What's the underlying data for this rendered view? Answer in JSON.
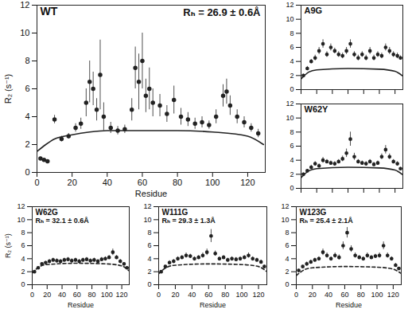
{
  "chart_data": [
    {
      "type": "scatter",
      "title": "WT",
      "subtitle": "Rₕ = 26.9 ± 0.6Å",
      "xlabel": "Residue",
      "ylabel": "R₂ (s⁻¹)",
      "xlim": [
        0,
        130
      ],
      "xticks": [
        0,
        20,
        40,
        60,
        80,
        100,
        120
      ],
      "ylim": [
        0,
        12
      ],
      "yticks": [
        0,
        2,
        4,
        6,
        8,
        10,
        12
      ],
      "color": "#222222",
      "series": [
        {
          "type": "scatter",
          "marker": "circle",
          "x": [
            2,
            4,
            6,
            10,
            14,
            18,
            22,
            25,
            28,
            30,
            32,
            34,
            36,
            38,
            42,
            46,
            50,
            54,
            56,
            58,
            60,
            62,
            64,
            66,
            70,
            74,
            78,
            82,
            86,
            90,
            94,
            98,
            102,
            106,
            108,
            110,
            114,
            118,
            122,
            126
          ],
          "values": [
            1.0,
            0.9,
            0.8,
            3.8,
            2.4,
            2.6,
            3.2,
            3.5,
            5.0,
            6.5,
            6.0,
            4.5,
            7.0,
            4.0,
            3.2,
            3.0,
            3.1,
            4.5,
            7.5,
            6.5,
            8.0,
            5.5,
            6.0,
            5.0,
            4.8,
            4.2,
            5.2,
            4.0,
            3.8,
            3.5,
            3.6,
            3.4,
            4.0,
            5.5,
            5.8,
            4.8,
            4.0,
            3.6,
            3.2,
            2.8
          ],
          "errors": [
            0.1,
            0.1,
            0.1,
            0.3,
            0.2,
            0.2,
            0.3,
            0.4,
            1.0,
            1.5,
            1.2,
            0.8,
            2.5,
            1.0,
            0.4,
            0.3,
            0.3,
            0.8,
            1.5,
            2.0,
            2.0,
            1.2,
            1.5,
            1.0,
            0.8,
            0.6,
            1.0,
            0.6,
            0.5,
            0.4,
            0.4,
            0.3,
            0.5,
            0.8,
            0.9,
            0.7,
            0.5,
            0.4,
            0.3,
            0.3
          ]
        },
        {
          "type": "line",
          "line_style": "solid",
          "x": [
            0,
            5,
            10,
            20,
            30,
            40,
            60,
            80,
            100,
            120,
            129
          ],
          "values": [
            1.5,
            2.0,
            2.4,
            2.7,
            2.9,
            3.0,
            3.0,
            3.0,
            2.9,
            2.6,
            2.0
          ]
        }
      ]
    },
    {
      "type": "scatter",
      "title": "A9G",
      "tick_labels": "y",
      "xlim": [
        0,
        130
      ],
      "xticks": [
        0,
        20,
        40,
        60,
        80,
        100,
        120
      ],
      "ylim": [
        0,
        12
      ],
      "yticks": [
        0,
        2,
        4,
        6,
        8,
        10,
        12
      ],
      "color": "#222222",
      "series": [
        {
          "type": "scatter",
          "marker": "circle",
          "x": [
            3,
            8,
            13,
            18,
            23,
            28,
            33,
            38,
            43,
            48,
            53,
            58,
            63,
            68,
            73,
            78,
            83,
            88,
            93,
            98,
            103,
            108,
            113,
            118,
            123,
            127
          ],
          "values": [
            2.0,
            3.0,
            4.0,
            4.5,
            5.5,
            6.5,
            5.0,
            6.0,
            5.5,
            5.0,
            4.8,
            5.5,
            6.5,
            5.0,
            4.5,
            5.0,
            4.5,
            5.5,
            4.5,
            5.0,
            4.8,
            6.0,
            5.5,
            5.0,
            4.8,
            4.5
          ],
          "errors": [
            0.2,
            0.3,
            0.3,
            0.4,
            0.5,
            0.6,
            0.4,
            0.5,
            0.4,
            0.4,
            0.4,
            0.5,
            0.6,
            0.4,
            0.4,
            0.4,
            0.4,
            0.5,
            0.4,
            0.4,
            0.4,
            0.5,
            0.5,
            0.4,
            0.4,
            0.3
          ]
        },
        {
          "type": "line",
          "line_style": "solid",
          "x": [
            0,
            10,
            20,
            60,
            100,
            120,
            129
          ],
          "values": [
            1.5,
            2.5,
            2.8,
            3.0,
            2.9,
            2.6,
            2.0
          ]
        }
      ]
    },
    {
      "type": "scatter",
      "title": "W62Y",
      "tick_labels": "y",
      "xlim": [
        0,
        130
      ],
      "xticks": [
        0,
        20,
        40,
        60,
        80,
        100,
        120
      ],
      "ylim": [
        0,
        12
      ],
      "yticks": [
        0,
        2,
        4,
        6,
        8,
        10,
        12
      ],
      "color": "#222222",
      "series": [
        {
          "type": "scatter",
          "marker": "circle",
          "x": [
            3,
            8,
            13,
            18,
            23,
            28,
            33,
            38,
            43,
            48,
            53,
            58,
            63,
            68,
            73,
            78,
            83,
            88,
            93,
            98,
            103,
            108,
            113,
            118,
            123,
            127
          ],
          "values": [
            2.0,
            2.5,
            3.0,
            3.5,
            3.2,
            4.0,
            3.8,
            3.6,
            3.5,
            3.8,
            4.2,
            5.0,
            7.0,
            4.5,
            3.8,
            3.6,
            3.5,
            3.8,
            3.4,
            3.6,
            4.5,
            5.5,
            4.5,
            3.8,
            3.5,
            2.8
          ],
          "errors": [
            0.2,
            0.2,
            0.3,
            0.3,
            0.3,
            0.4,
            0.3,
            0.3,
            0.3,
            0.3,
            0.4,
            0.6,
            1.0,
            0.5,
            0.3,
            0.3,
            0.3,
            0.3,
            0.3,
            0.3,
            0.4,
            0.6,
            0.4,
            0.3,
            0.3,
            0.2
          ]
        },
        {
          "type": "line",
          "line_style": "solid",
          "x": [
            0,
            10,
            20,
            60,
            100,
            120,
            129
          ],
          "values": [
            1.5,
            2.5,
            2.8,
            3.0,
            2.9,
            2.6,
            2.0
          ]
        }
      ]
    },
    {
      "type": "scatter",
      "title": "W62G",
      "subtitle": "Rₕ = 32.1 ± 0.6Å",
      "xlabel": "Residue",
      "ylabel": "R₂ (s⁻¹)",
      "xlim": [
        0,
        130
      ],
      "xticks": [
        0,
        20,
        40,
        60,
        80,
        100,
        120
      ],
      "ylim": [
        0,
        12
      ],
      "yticks": [
        0,
        2,
        4,
        6,
        8,
        10,
        12
      ],
      "color": "#222222",
      "series": [
        {
          "type": "scatter",
          "marker": "circle",
          "x": [
            3,
            8,
            13,
            18,
            23,
            28,
            33,
            38,
            43,
            48,
            53,
            58,
            63,
            68,
            73,
            78,
            83,
            88,
            93,
            98,
            103,
            108,
            113,
            118,
            123,
            127
          ],
          "values": [
            2.0,
            2.6,
            3.2,
            3.4,
            3.6,
            3.8,
            3.7,
            3.6,
            3.8,
            3.9,
            3.7,
            3.8,
            3.6,
            3.8,
            3.9,
            3.7,
            3.8,
            3.6,
            3.9,
            4.0,
            4.2,
            5.0,
            4.2,
            3.6,
            3.2,
            2.6
          ],
          "errors": [
            0.2,
            0.2,
            0.2,
            0.2,
            0.3,
            0.3,
            0.3,
            0.3,
            0.3,
            0.3,
            0.3,
            0.3,
            0.3,
            0.3,
            0.3,
            0.3,
            0.3,
            0.3,
            0.3,
            0.3,
            0.3,
            0.5,
            0.3,
            0.3,
            0.2,
            0.2
          ]
        },
        {
          "type": "line",
          "line_style": "dashed",
          "x": [
            0,
            10,
            20,
            60,
            100,
            120,
            129
          ],
          "values": [
            1.8,
            2.8,
            3.1,
            3.3,
            3.2,
            2.9,
            2.2
          ]
        }
      ]
    },
    {
      "type": "scatter",
      "title": "W111G",
      "subtitle": "Rₕ = 29.3 ± 1.3Å",
      "xlabel": "Residue",
      "xlim": [
        0,
        130
      ],
      "xticks": [
        0,
        20,
        40,
        60,
        80,
        100,
        120
      ],
      "ylim": [
        0,
        12
      ],
      "yticks": [
        0,
        2,
        4,
        6,
        8,
        10,
        12
      ],
      "color": "#222222",
      "series": [
        {
          "type": "scatter",
          "marker": "circle",
          "x": [
            3,
            8,
            13,
            18,
            23,
            28,
            33,
            38,
            43,
            48,
            53,
            58,
            63,
            68,
            73,
            78,
            83,
            88,
            93,
            98,
            103,
            108,
            113,
            118,
            123,
            127
          ],
          "values": [
            2.0,
            2.8,
            3.4,
            3.6,
            4.0,
            4.2,
            4.5,
            4.4,
            4.0,
            4.2,
            4.5,
            5.0,
            7.5,
            4.8,
            4.0,
            4.2,
            3.8,
            4.0,
            3.9,
            4.0,
            4.2,
            4.5,
            4.0,
            3.8,
            3.5,
            2.8
          ],
          "errors": [
            0.2,
            0.2,
            0.3,
            0.3,
            0.3,
            0.3,
            0.4,
            0.3,
            0.3,
            0.3,
            0.4,
            0.5,
            1.0,
            0.4,
            0.3,
            0.3,
            0.3,
            0.3,
            0.3,
            0.3,
            0.3,
            0.4,
            0.3,
            0.3,
            0.3,
            0.2
          ]
        },
        {
          "type": "line",
          "line_style": "dashed",
          "x": [
            0,
            10,
            20,
            60,
            100,
            120,
            129
          ],
          "values": [
            1.7,
            2.7,
            3.0,
            3.2,
            3.1,
            2.8,
            2.1
          ]
        }
      ]
    },
    {
      "type": "scatter",
      "title": "W123G",
      "subtitle": "Rₕ = 25.4 ± 2.1Å",
      "xlabel": "Residue",
      "xlim": [
        0,
        130
      ],
      "xticks": [
        0,
        20,
        40,
        60,
        80,
        100,
        120
      ],
      "ylim": [
        0,
        12
      ],
      "yticks": [
        0,
        2,
        4,
        6,
        8,
        10,
        12
      ],
      "color": "#222222",
      "series": [
        {
          "type": "scatter",
          "marker": "circle",
          "x": [
            3,
            8,
            13,
            18,
            23,
            28,
            33,
            38,
            43,
            48,
            53,
            58,
            63,
            68,
            73,
            78,
            83,
            88,
            93,
            98,
            103,
            108,
            113,
            118,
            123,
            127
          ],
          "values": [
            2.2,
            2.8,
            3.2,
            3.5,
            3.8,
            4.0,
            5.0,
            4.5,
            4.0,
            4.5,
            4.2,
            6.0,
            8.0,
            5.5,
            4.5,
            4.2,
            4.0,
            4.5,
            4.2,
            4.4,
            4.5,
            6.0,
            4.5,
            4.0,
            3.0,
            2.5
          ],
          "errors": [
            0.2,
            0.2,
            0.3,
            0.3,
            0.3,
            0.3,
            0.5,
            0.4,
            0.3,
            0.4,
            0.4,
            0.6,
            0.8,
            0.5,
            0.4,
            0.3,
            0.3,
            0.4,
            0.3,
            0.3,
            0.4,
            0.6,
            0.4,
            0.3,
            0.3,
            0.2
          ]
        },
        {
          "type": "line",
          "line_style": "dashed",
          "x": [
            0,
            10,
            20,
            60,
            100,
            120,
            129
          ],
          "values": [
            1.4,
            2.3,
            2.6,
            2.8,
            2.7,
            2.4,
            1.8
          ]
        }
      ]
    }
  ]
}
